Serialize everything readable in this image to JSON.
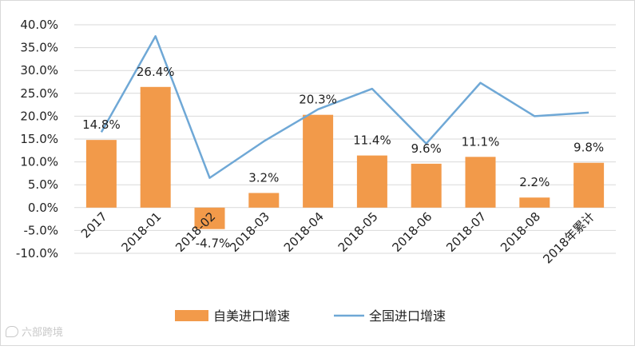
{
  "watermark": "六部跨境",
  "chart_data": {
    "type": "bar",
    "categories": [
      "2017",
      "2018-01",
      "2018-02",
      "2018-03",
      "2018-04",
      "2018-05",
      "2018-06",
      "2018-07",
      "2018-08",
      "2018年累计"
    ],
    "series": [
      {
        "name": "自美进口增速",
        "kind": "bar",
        "color": "#F29A4A",
        "values": [
          14.8,
          26.4,
          -4.7,
          3.2,
          20.3,
          11.4,
          9.6,
          11.1,
          2.2,
          9.8
        ],
        "labels": [
          "14.8%",
          "26.4%",
          "-4.7%",
          "3.2%",
          "20.3%",
          "11.4%",
          "9.6%",
          "11.1%",
          "2.2%",
          "9.8%"
        ]
      },
      {
        "name": "全国进口增速",
        "kind": "line",
        "color": "#6FA8D6",
        "values": [
          16.5,
          37.5,
          6.5,
          14.5,
          21.5,
          26.0,
          14.0,
          27.3,
          20.0,
          20.8
        ]
      }
    ],
    "ylim": [
      -10,
      40
    ],
    "yticks": [
      "-10.0%",
      "-5.0%",
      "0.0%",
      "5.0%",
      "10.0%",
      "15.0%",
      "20.0%",
      "25.0%",
      "30.0%",
      "35.0%",
      "40.0%"
    ],
    "grid": true,
    "legend": "bottom"
  }
}
